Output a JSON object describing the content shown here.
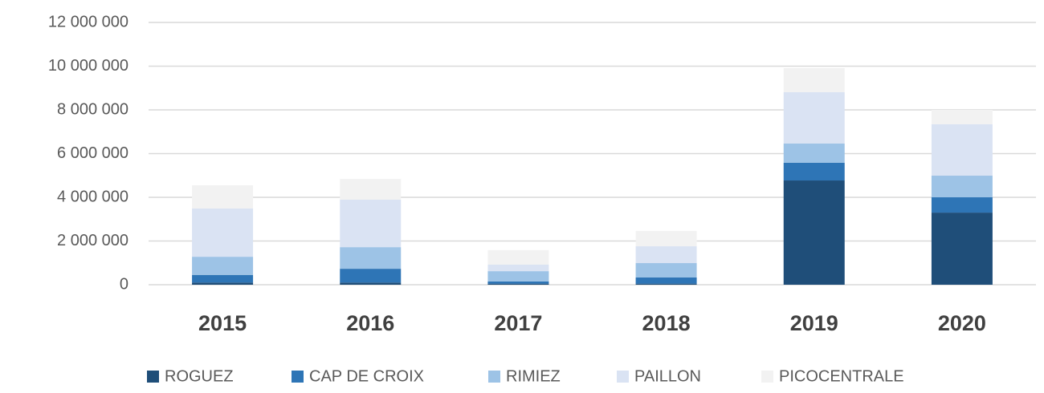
{
  "chart_data": {
    "type": "stacked_bar",
    "categories": [
      "2015",
      "2016",
      "2017",
      "2018",
      "2019",
      "2020"
    ],
    "series": [
      {
        "name": "ROGUEZ",
        "color": "#1f4e79",
        "values": [
          100000,
          100000,
          50000,
          50000,
          4770000,
          3300000
        ]
      },
      {
        "name": "CAP DE CROIX",
        "color": "#2e75b6",
        "values": [
          350000,
          630000,
          100000,
          280000,
          810000,
          700000
        ]
      },
      {
        "name": "RIMIEZ",
        "color": "#9dc3e6",
        "values": [
          830000,
          990000,
          470000,
          660000,
          880000,
          990000
        ]
      },
      {
        "name": "PAILLON",
        "color": "#dae3f3",
        "values": [
          2210000,
          2170000,
          300000,
          770000,
          2350000,
          2350000
        ]
      },
      {
        "name": "PICOCENTRALE",
        "color": "#f2f2f2",
        "values": [
          1060000,
          950000,
          660000,
          700000,
          1100000,
          660000
        ]
      }
    ],
    "ylim": [
      0,
      12000000
    ],
    "yticks": [
      0,
      {
        "value": 2000000,
        "label": "2 000 000"
      },
      {
        "value": 4000000,
        "label": "4 000 000"
      },
      {
        "value": 6000000,
        "label": "6 000 000"
      },
      {
        "value": 8000000,
        "label": "8 000 000"
      },
      {
        "value": 10000000,
        "label": "10 000 000"
      },
      {
        "value": 12000000,
        "label": "12 000 000"
      }
    ],
    "grid": true,
    "legend": "bottom"
  }
}
